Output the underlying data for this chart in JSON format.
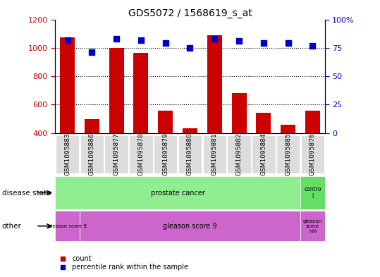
{
  "title": "GDS5072 / 1568619_s_at",
  "samples": [
    "GSM1095883",
    "GSM1095886",
    "GSM1095877",
    "GSM1095878",
    "GSM1095879",
    "GSM1095880",
    "GSM1095881",
    "GSM1095882",
    "GSM1095884",
    "GSM1095885",
    "GSM1095876"
  ],
  "counts": [
    1075,
    497,
    1000,
    963,
    556,
    432,
    1090,
    680,
    540,
    456,
    556
  ],
  "percentile_ranks": [
    82,
    71,
    83,
    82,
    79,
    75,
    83,
    81,
    79,
    79,
    77
  ],
  "left_ylim": [
    400,
    1200
  ],
  "left_yticks": [
    400,
    600,
    800,
    1000,
    1200
  ],
  "right_ylim": [
    0,
    100
  ],
  "right_yticks": [
    0,
    25,
    50,
    75,
    100
  ],
  "right_yticklabels": [
    "0",
    "25",
    "50",
    "75",
    "100%"
  ],
  "bar_color": "#cc0000",
  "dot_color": "#0000cc",
  "bar_width": 0.6,
  "dot_size": 40,
  "disease_state_label1": "prostate cancer",
  "disease_state_label2": "contro\nl",
  "disease_state_color1": "#90EE90",
  "disease_state_color2": "#66DD66",
  "other_label1": "gleason score 8",
  "other_label2": "gleason score 9",
  "other_label3": "gleason\nscore\nn/a",
  "other_color": "#CC66CC",
  "label_row1": "disease state",
  "label_row2": "other",
  "title_fontsize": 10,
  "tick_fontsize": 8,
  "sample_fontsize": 6.5,
  "ann_fontsize": 7
}
